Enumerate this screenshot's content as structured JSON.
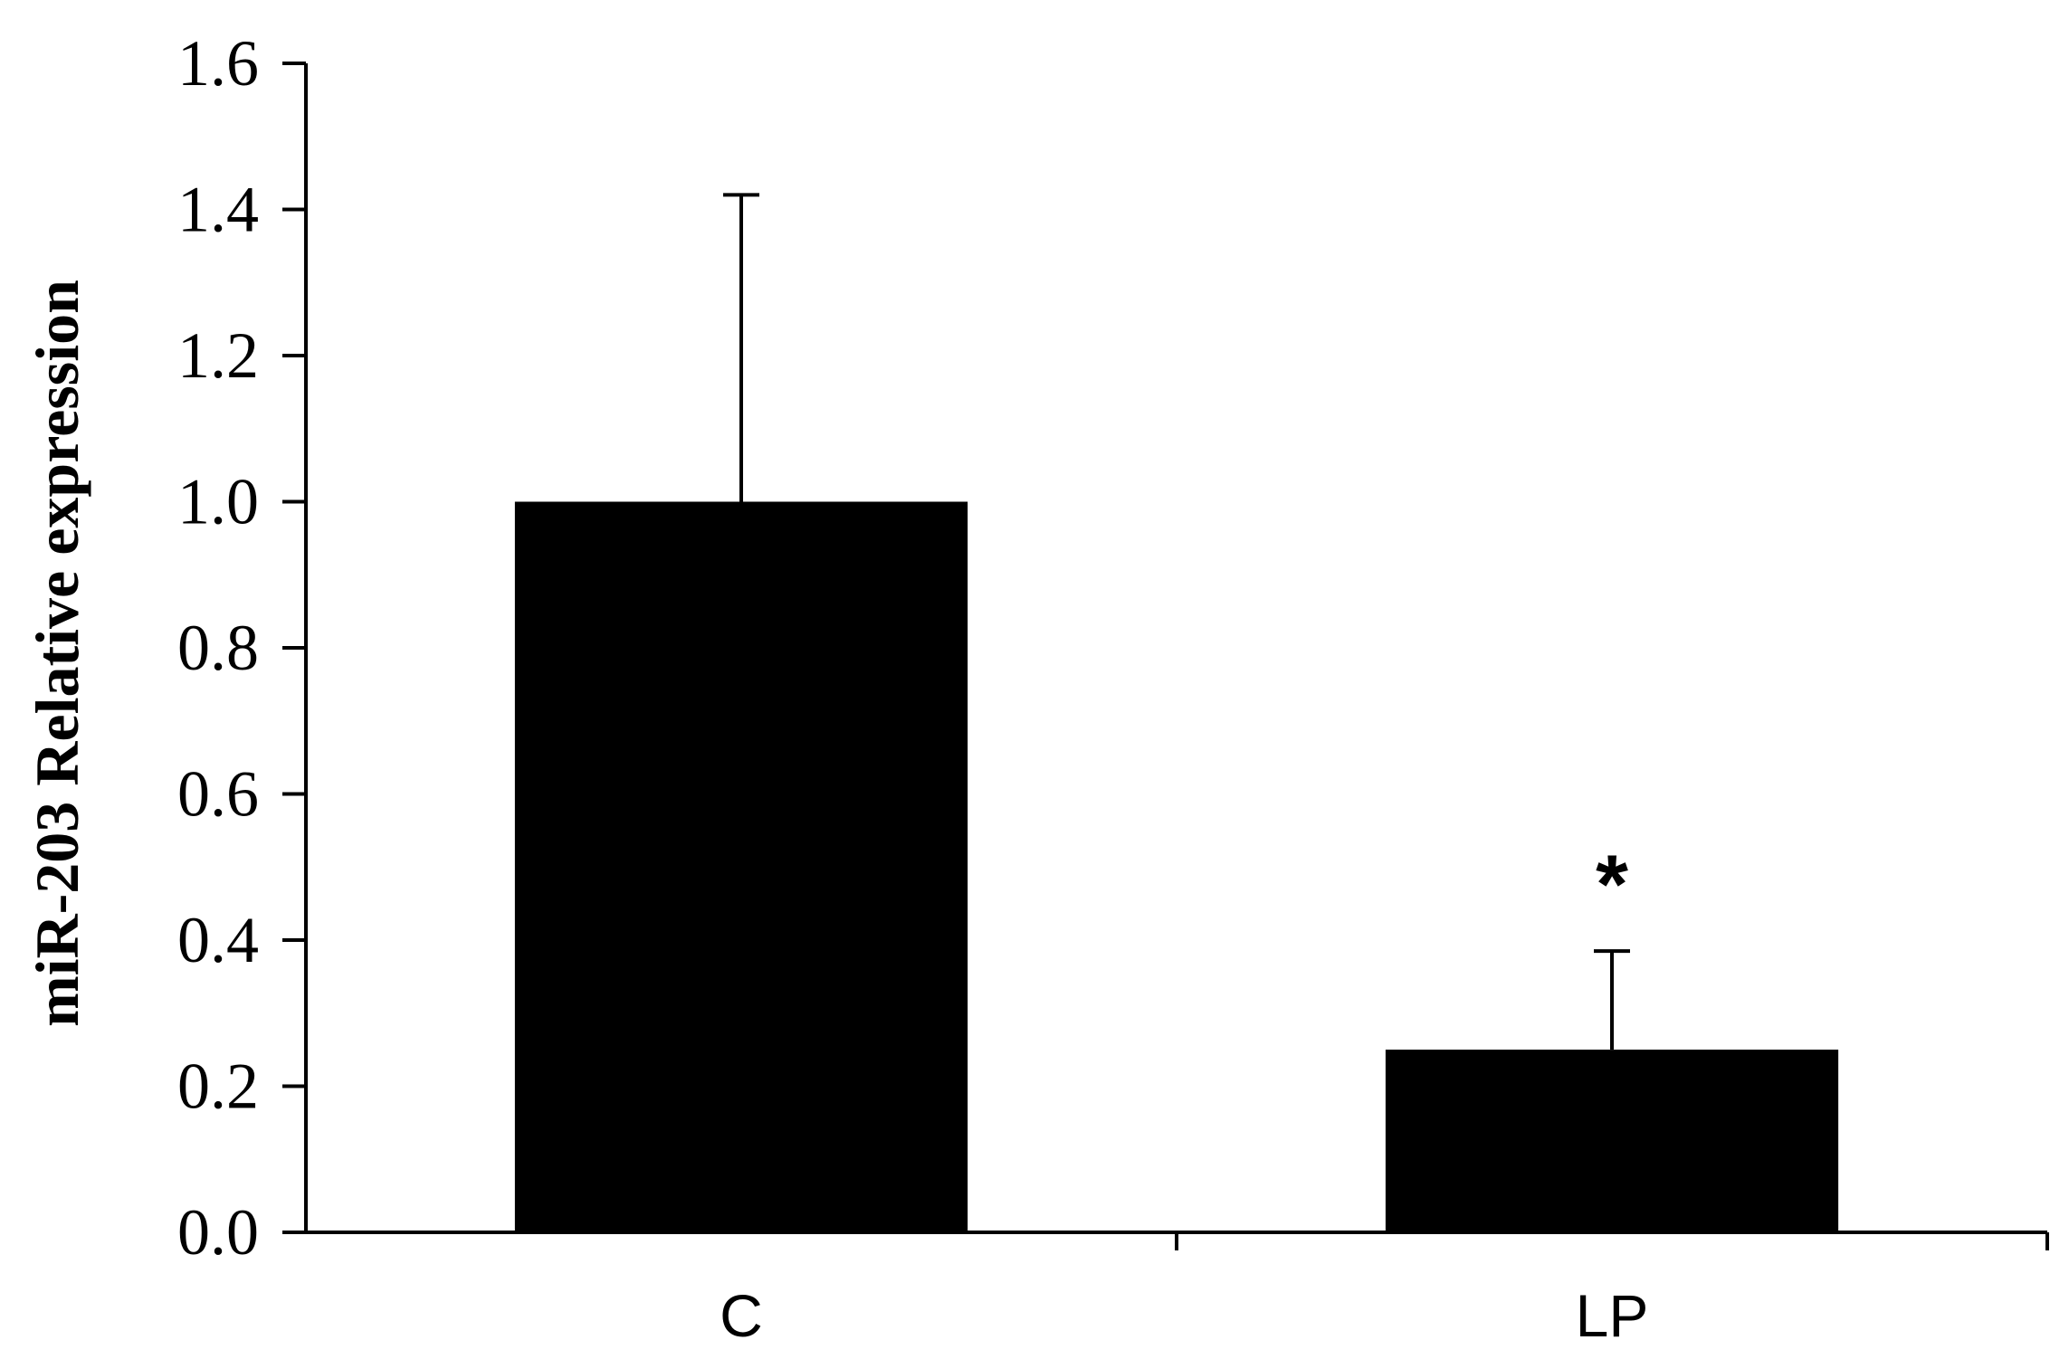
{
  "chart_data": {
    "type": "bar",
    "categories": [
      "C",
      "LP"
    ],
    "series": [
      {
        "values": [
          1.0,
          0.25
        ],
        "error_upper": [
          0.42,
          0.135
        ],
        "color": "#000000"
      }
    ],
    "significance": [
      "",
      "*"
    ],
    "title": "",
    "xlabel": "",
    "ylabel": "miR-203 Relative expression",
    "ylim": [
      0,
      1.6
    ],
    "yticks": [
      "0.0",
      "0.2",
      "0.4",
      "0.6",
      "0.8",
      "1.0",
      "1.2",
      "1.4",
      "1.6"
    ],
    "grid": false,
    "legend": "none"
  }
}
